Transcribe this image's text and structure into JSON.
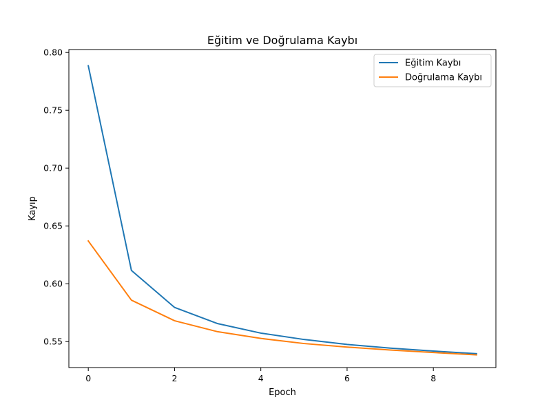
{
  "chart_data": {
    "type": "line",
    "title": "Eğitim ve Doğrulama Kaybı",
    "xlabel": "Epoch",
    "ylabel": "Kayıp",
    "x": [
      0,
      1,
      2,
      3,
      4,
      5,
      6,
      7,
      8,
      9
    ],
    "xlim": [
      -0.45,
      9.45
    ],
    "ylim": [
      0.5275,
      0.8025
    ],
    "xticks": [
      0,
      2,
      4,
      6,
      8
    ],
    "yticks": [
      0.55,
      0.6,
      0.65,
      0.7,
      0.75,
      0.8
    ],
    "ytick_labels": [
      "0.55",
      "0.60",
      "0.65",
      "0.70",
      "0.75",
      "0.80"
    ],
    "grid": false,
    "legend_position": "top-right",
    "series": [
      {
        "name": "Eğitim Kaybı",
        "color": "#1f77b4",
        "values": [
          0.7885,
          0.6115,
          0.5795,
          0.5655,
          0.5573,
          0.5518,
          0.5475,
          0.5443,
          0.5418,
          0.5395
        ]
      },
      {
        "name": "Doğrulama Kaybı",
        "color": "#ff7f0e",
        "values": [
          0.637,
          0.5858,
          0.568,
          0.5585,
          0.5527,
          0.5483,
          0.5452,
          0.5427,
          0.5405,
          0.5385
        ]
      }
    ]
  }
}
